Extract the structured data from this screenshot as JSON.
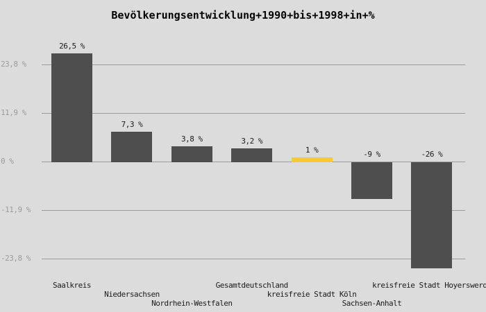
{
  "page": {
    "background": "#dcdcdc"
  },
  "chart_data": {
    "type": "bar",
    "title": "Bevölkerungsentwicklung+1990+bis+1998+in+%",
    "categories": [
      "Saalkreis",
      "Niedersachsen",
      "Nordrhein-Westfalen",
      "Gesamtdeutschland",
      "kreisfreie Stadt Köln",
      "Sachsen-Anhalt",
      "kreisfreie Stadt Hoyerswerda"
    ],
    "values": [
      26.5,
      7.3,
      3.8,
      3.2,
      1,
      -9,
      -26
    ],
    "value_labels": [
      "26,5 %",
      "7,3 %",
      "3,8 %",
      "3,2 %",
      "1 %",
      "-9 %",
      "-26 %"
    ],
    "bar_color": "#4e4e4e",
    "highlight_color": "#fbc82f",
    "highlighted_index": 4,
    "y_ticks": [
      23.8,
      11.9,
      0,
      -11.9,
      -23.8
    ],
    "y_tick_labels": [
      "23,8 %",
      "11,9 %",
      "0 %",
      "-11,9 %",
      "-23,8 %"
    ],
    "ylim": [
      -28,
      29
    ],
    "grid": true,
    "legend": "none",
    "xlabel": "",
    "ylabel": ""
  },
  "colors": {
    "grid": "#9b9b9b",
    "y_tick_text": "#9b9b9b",
    "label_text": "#1a1a1a",
    "title_text": "#000000"
  }
}
